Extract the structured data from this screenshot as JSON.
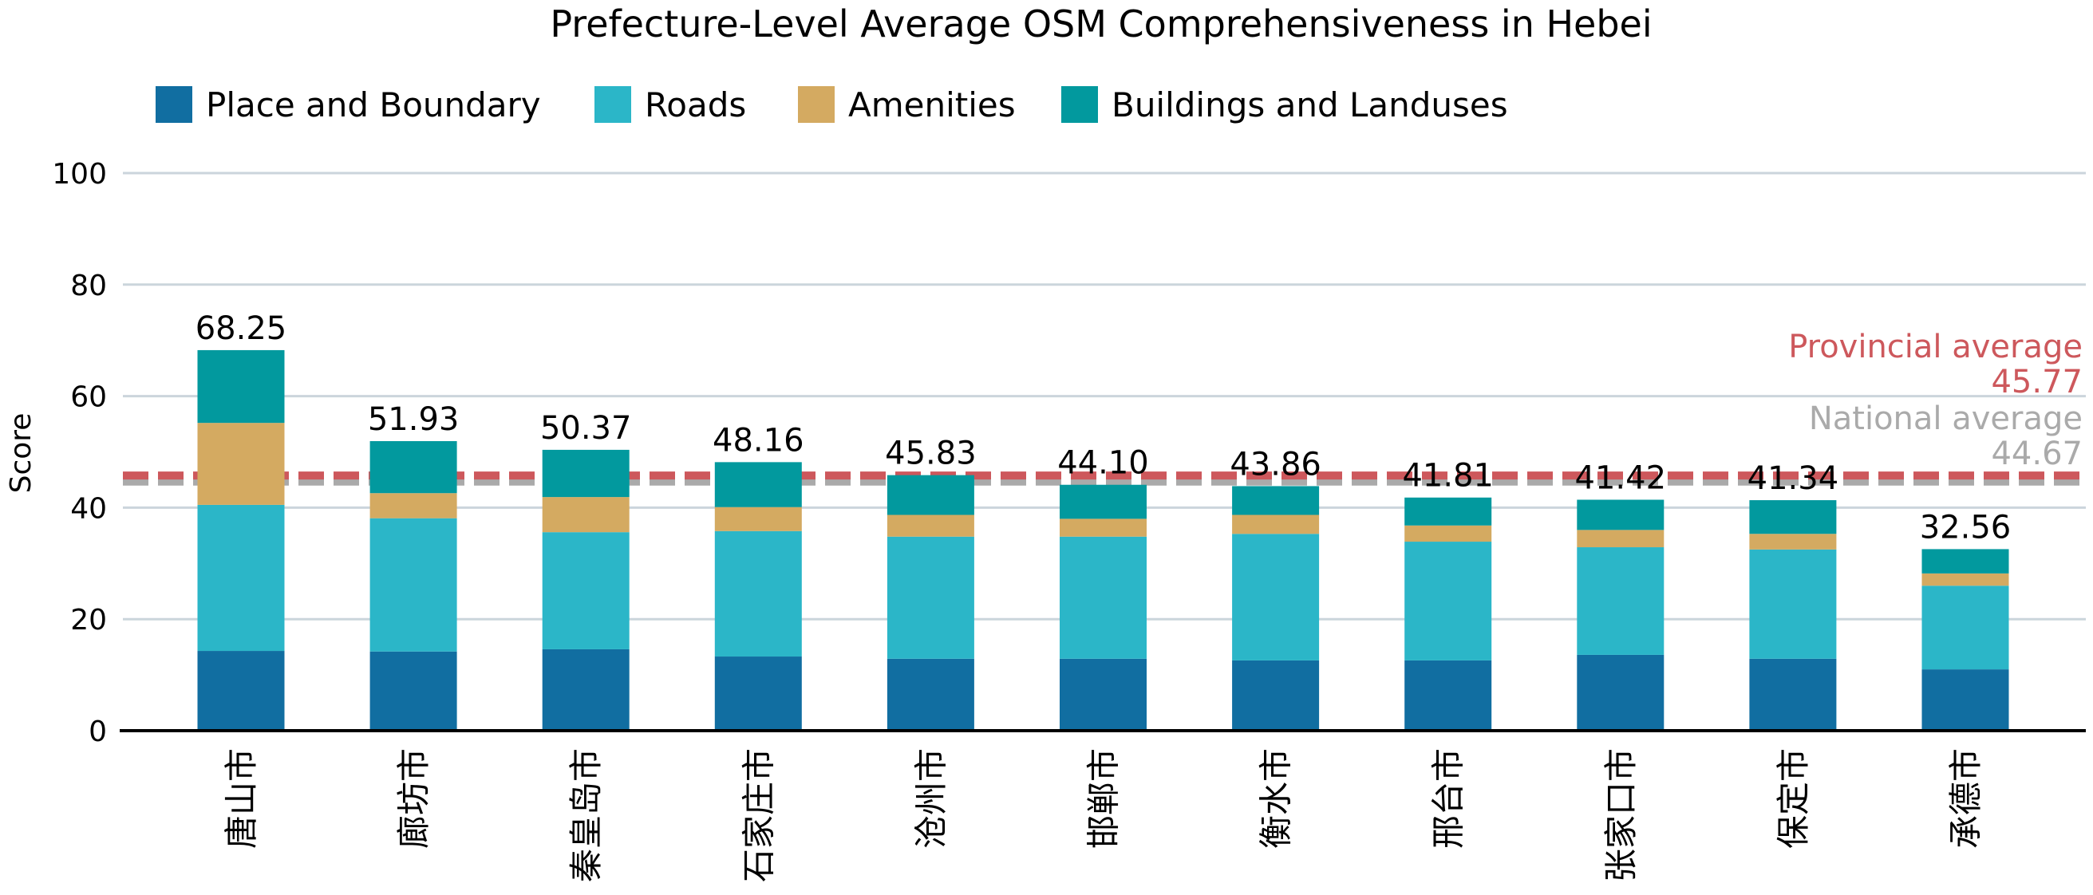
{
  "chart_data": {
    "type": "bar",
    "stacked": true,
    "title": "Prefecture-Level Average OSM Comprehensiveness in Hebei",
    "xlabel": "",
    "ylabel": "Score",
    "ylim": [
      0,
      100
    ],
    "yticks": [
      0,
      20,
      40,
      60,
      80,
      100
    ],
    "grid": true,
    "legend_position": "top-left",
    "categories": [
      "唐山市",
      "廊坊市",
      "秦皇岛市",
      "石家庄市",
      "沧州市",
      "邯郸市",
      "衡水市",
      "邢台市",
      "张家口市",
      "保定市",
      "承德市"
    ],
    "totals": [
      "68.25",
      "51.93",
      "50.37",
      "48.16",
      "45.83",
      "44.10",
      "43.86",
      "41.81",
      "41.42",
      "41.34",
      "32.56"
    ],
    "series": [
      {
        "name": "Place and Boundary",
        "color": "#116ea1",
        "values": [
          14.3,
          14.2,
          14.6,
          13.3,
          12.9,
          12.9,
          12.6,
          12.6,
          13.6,
          12.9,
          11.0
        ]
      },
      {
        "name": "Roads",
        "color": "#2bb6c8",
        "values": [
          26.2,
          23.9,
          21.0,
          22.5,
          21.9,
          21.9,
          22.7,
          21.3,
          19.3,
          19.6,
          15.0
        ]
      },
      {
        "name": "Amenities",
        "color": "#d4aa61",
        "values": [
          14.7,
          4.5,
          6.3,
          4.3,
          3.9,
          3.2,
          3.4,
          2.9,
          3.1,
          2.8,
          2.2
        ]
      },
      {
        "name": "Buildings and Landuses",
        "color": "#02999e",
        "values": [
          13.05,
          9.33,
          8.47,
          8.06,
          7.13,
          6.1,
          5.16,
          5.01,
          5.42,
          6.04,
          4.36
        ]
      }
    ],
    "reference_lines": [
      {
        "label": "National average",
        "value": 44.67,
        "value_text": "44.67",
        "color": "#aaaaaa"
      },
      {
        "label": "Provincial average",
        "value": 45.77,
        "value_text": "45.77",
        "color": "#cd585c"
      }
    ]
  }
}
